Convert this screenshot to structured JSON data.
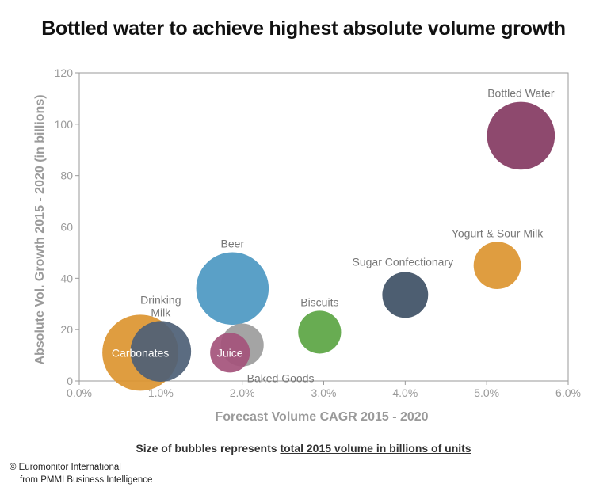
{
  "page_title": "Bottled water to achieve highest absolute volume growth",
  "footnote": {
    "prefix": "Size of bubbles represents ",
    "underlined": "total 2015 volume in billions of units"
  },
  "credit": {
    "line1": "© Euromonitor International",
    "line2": "from PMMI Business Intelligence"
  },
  "chart_data": {
    "type": "scatter",
    "subtype": "bubble",
    "title": "Bottled water to achieve highest absolute volume growth",
    "xlabel": "Forecast Volume CAGR 2015 - 2020",
    "ylabel": "Absolute Vol. Growth 2015 - 2020 (in billions)",
    "xlim": [
      0,
      6
    ],
    "ylim": [
      0,
      120
    ],
    "x_ticks": [
      0,
      1,
      2,
      3,
      4,
      5,
      6
    ],
    "x_tick_labels": [
      "0.0%",
      "1.0%",
      "2.0%",
      "3.0%",
      "4.0%",
      "5.0%",
      "6.0%"
    ],
    "y_ticks": [
      0,
      20,
      40,
      60,
      80,
      100,
      120
    ],
    "y_tick_labels": [
      "0",
      "20",
      "40",
      "60",
      "80",
      "100",
      "120"
    ],
    "grid": false,
    "size_note": "Size of bubbles represents total 2015 volume in billions of units",
    "series": [
      {
        "name": "Carbonates",
        "x": 0.75,
        "y": 11,
        "size": 220,
        "color": "#DC9530",
        "label_pos": "center"
      },
      {
        "name": "Drinking Milk",
        "x": 1.0,
        "y": 11.5,
        "size": 140,
        "color": "#4D5F76",
        "label_pos": "above"
      },
      {
        "name": "Beer",
        "x": 1.88,
        "y": 36,
        "size": 200,
        "color": "#4C98C2",
        "label_pos": "above"
      },
      {
        "name": "Baked Goods",
        "x": 2.0,
        "y": 14,
        "size": 70,
        "color": "#9C9C9C",
        "label_pos": "below-right"
      },
      {
        "name": "Juice",
        "x": 1.85,
        "y": 11,
        "size": 60,
        "color": "#A4537B",
        "label_pos": "center"
      },
      {
        "name": "Biscuits",
        "x": 2.95,
        "y": 19,
        "size": 70,
        "color": "#5BA543",
        "label_pos": "above"
      },
      {
        "name": "Sugar Confectionary",
        "x": 4.0,
        "y": 33.5,
        "size": 80,
        "color": "#3E5065",
        "label_pos": "above-left"
      },
      {
        "name": "Yogurt & Sour Milk",
        "x": 5.13,
        "y": 45,
        "size": 85,
        "color": "#DC9530",
        "label_pos": "above"
      },
      {
        "name": "Bottled Water",
        "x": 5.42,
        "y": 95.5,
        "size": 175,
        "color": "#843A62",
        "label_pos": "above"
      }
    ]
  }
}
